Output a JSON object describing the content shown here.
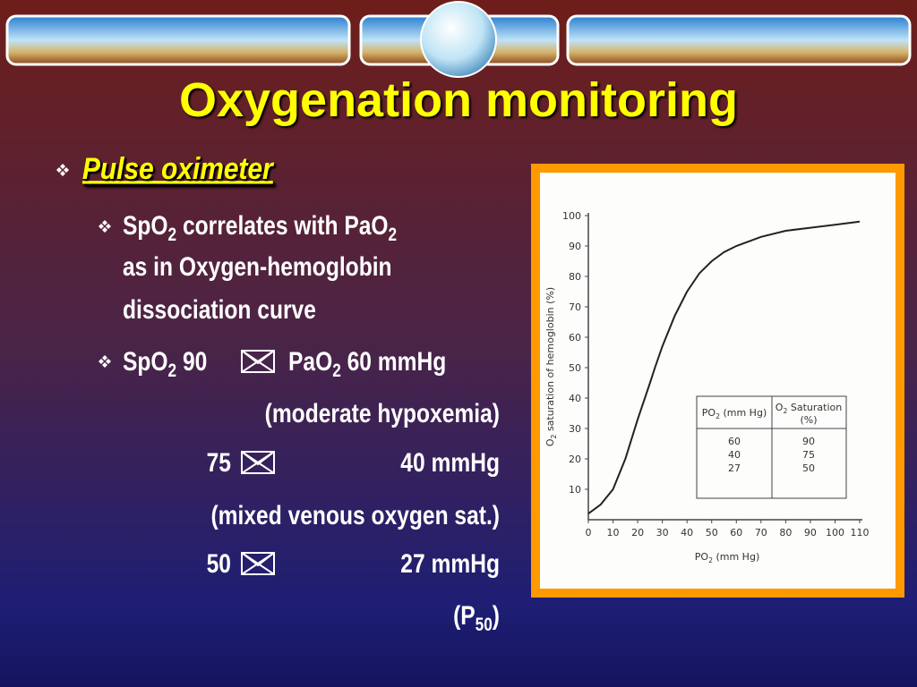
{
  "slide": {
    "title": "Oxygenation monitoring",
    "heading": "Pulse oximeter",
    "lines": [
      [
        {
          "text": "SpO"
        },
        {
          "sub": "2"
        },
        {
          "text": " correlates with PaO"
        },
        {
          "sub": "2"
        }
      ],
      [
        {
          "text": "as in Oxygen-hemoglobin"
        }
      ],
      [
        {
          "text": "dissociation curve"
        }
      ],
      [
        {
          "text": "SpO"
        },
        {
          "sub": "2"
        },
        {
          "text": " 90"
        }
      ],
      [
        {
          "text": "PaO"
        },
        {
          "sub": "2"
        },
        {
          "text": " 60 mmHg"
        }
      ],
      [
        {
          "text": "(moderate hypoxemia)"
        }
      ],
      [
        {
          "text": "75"
        }
      ],
      [
        {
          "text": "40 mmHg"
        }
      ],
      [
        {
          "text": "(mixed venous oxygen sat.)"
        }
      ],
      [
        {
          "text": "50"
        }
      ],
      [
        {
          "text": "27 mmHg"
        }
      ],
      [
        {
          "text": "(P"
        },
        {
          "sub": "50"
        },
        {
          "text": ")"
        }
      ]
    ]
  },
  "figure": {
    "type": "line",
    "x": [
      0,
      5,
      10,
      15,
      20,
      25,
      27,
      30,
      35,
      40,
      45,
      50,
      55,
      60,
      70,
      80,
      90,
      100,
      110
    ],
    "values": [
      2,
      5,
      10,
      20,
      33,
      45,
      50,
      57,
      67,
      75,
      81,
      85,
      88,
      90,
      93,
      95,
      96,
      97,
      98
    ],
    "xlim": [
      0,
      110
    ],
    "ylim": [
      0,
      100
    ],
    "xticks": [
      0,
      10,
      20,
      30,
      40,
      50,
      60,
      70,
      80,
      90,
      100,
      110
    ],
    "yticks": [
      10,
      20,
      30,
      40,
      50,
      60,
      70,
      80,
      90,
      100
    ],
    "xlabel": [
      {
        "text": "PO"
      },
      {
        "sub": "2"
      },
      {
        "text": " (mm Hg)"
      }
    ],
    "ylabel": [
      {
        "text": "O"
      },
      {
        "sub": "2"
      },
      {
        "text": " saturation of hemoglobin (%)"
      }
    ],
    "table": {
      "header": [
        [
          {
            "text": "PO"
          },
          {
            "sub": "2"
          },
          {
            "text": " (mm Hg)"
          }
        ],
        [
          {
            "text": "O"
          },
          {
            "sub": "2"
          },
          {
            "text": " Saturation"
          }
        ]
      ],
      "header_unit": "(%)",
      "rows": [
        [
          60,
          90
        ],
        [
          40,
          75
        ],
        [
          27,
          50
        ]
      ]
    }
  }
}
